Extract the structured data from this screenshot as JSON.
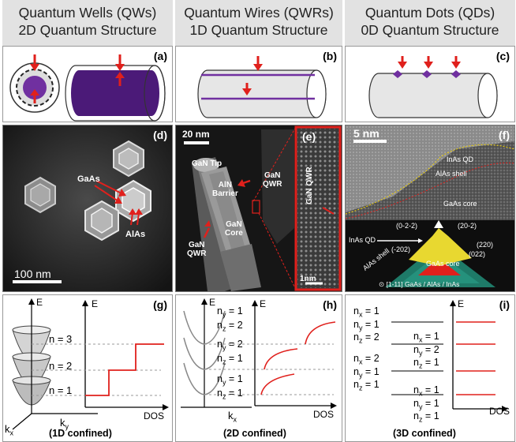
{
  "headers": [
    {
      "line1": "Quantum Wells (QWs)",
      "line2": "2D Quantum Structure"
    },
    {
      "line1": "Quantum Wires (QWRs)",
      "line2": "1D Quantum Structure"
    },
    {
      "line1": "Quantum Dots (QDs)",
      "line2": "0D Quantum Structure"
    }
  ],
  "panel_labels": [
    "(a)",
    "(b)",
    "(c)",
    "(d)",
    "(e)",
    "(f)",
    "(g)",
    "(h)",
    "(i)"
  ],
  "panel_d": {
    "gaas": "GaAs",
    "alas": "AlAs",
    "scale": "100 nm"
  },
  "panel_e": {
    "scale": "20 nm",
    "gan_tip": "GaN Tip",
    "aln_barrier_1": "AlN",
    "aln_barrier_2": "Barrier",
    "gan_qwr_right_1": "GaN",
    "gan_qwr_right_2": "QWR",
    "gan_core_1": "GaN",
    "gan_core_2": "Core",
    "gan_qwr_left_1": "GaN",
    "gan_qwr_left_2": "QWR",
    "inset_label": "GaN QWR",
    "inset_scale": "1nm"
  },
  "panel_f": {
    "scale": "5 nm",
    "inas_qd": "InAs QD",
    "alas_shell": "AlAs shell",
    "gaas_core": "GaAs core",
    "m_022a": "(0-2-2)",
    "m_20m2": "(20-2)",
    "m_inas": "InAs QD",
    "m_m202": "(-202)",
    "m_220": "(220)",
    "m_022": "(022)",
    "m_alas": "AlAs shell",
    "m_gaas": "GaAs core",
    "zone": "⊙ [1-11] GaAs / AlAs / InAs"
  },
  "panel_g": {
    "e": "E",
    "e2": "E",
    "n3": "n = 3",
    "n2": "n = 2",
    "n1": "n = 1",
    "ky": "k",
    "ky_sub": "y",
    "kx": "k",
    "kx_sub": "x",
    "dos": "DOS",
    "caption": "(1D confined)"
  },
  "panel_h": {
    "e": "E",
    "e2": "E",
    "s3a": "n",
    "s3a_sub": "y",
    "s3a_val": " = 1",
    "s3b": "n",
    "s3b_sub": "z",
    "s3b_val": " = 2",
    "s2a": "n",
    "s2a_sub": "y",
    "s2a_val": " = 2",
    "s2b": "n",
    "s2b_sub": "z",
    "s2b_val": " = 1",
    "s1a": "n",
    "s1a_sub": "y",
    "s1a_val": " = 1",
    "s1b": "n",
    "s1b_sub": "z",
    "s1b_val": " = 1",
    "kx": "k",
    "kx_sub": "x",
    "dos": "DOS",
    "caption": "(2D confined)"
  },
  "panel_i": {
    "e": "E",
    "l1": [
      "n",
      "x",
      " = 1"
    ],
    "l2": [
      "n",
      "y",
      " = 1"
    ],
    "l3": [
      "n",
      "z",
      " = 2"
    ],
    "r1": [
      "n",
      "x",
      " = 1"
    ],
    "r2": [
      "n",
      "y",
      " = 2"
    ],
    "r3": [
      "n",
      "z",
      " = 1"
    ],
    "l4": [
      "n",
      "x",
      " = 2"
    ],
    "l5": [
      "n",
      "y",
      " = 1"
    ],
    "l6": [
      "n",
      "z",
      " = 1"
    ],
    "b1": [
      "n",
      "x",
      " = 1"
    ],
    "b2": [
      "n",
      "y",
      " = 1"
    ],
    "b3": [
      "n",
      "z",
      " = 1"
    ],
    "dos": "DOS",
    "caption": "(3D confined)"
  },
  "colors": {
    "header_bg": "#e2e2e2",
    "purple": "#7030a0",
    "red": "#e0201c",
    "dark_purple": "#4b1a78"
  }
}
